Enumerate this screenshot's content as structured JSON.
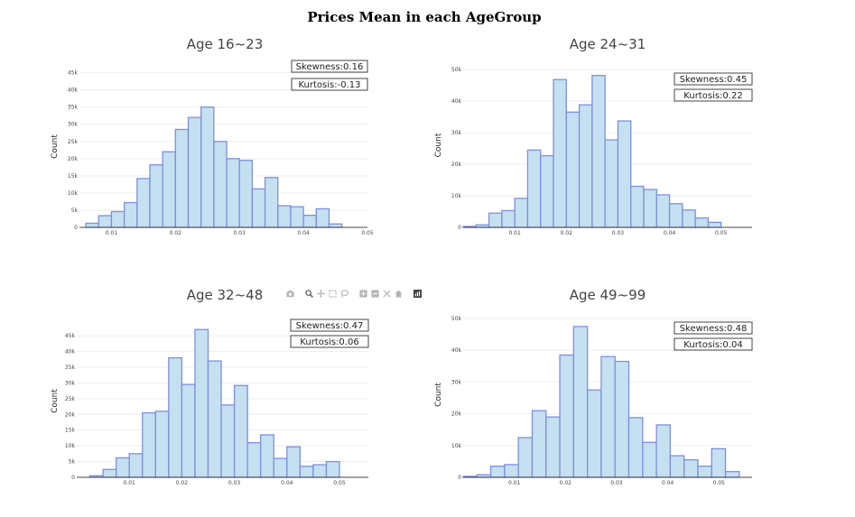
{
  "title": "Prices Mean in each AgeGroup",
  "colors": {
    "bar_fill": "#c5e0f0",
    "bar_stroke": "#7e8fe0",
    "modebar": "#b4b4b4",
    "plotly_logo": "#444444"
  },
  "modebar_icons": [
    "camera-icon",
    "zoom-icon",
    "pan-icon",
    "box-select-icon",
    "lasso-select-icon",
    "zoom-in-icon",
    "zoom-out-icon",
    "autoscale-icon",
    "reset-axes-icon",
    "plotly-logo-icon"
  ],
  "chart_data": [
    {
      "type": "bar",
      "title": "Age 16~23",
      "xlabel": "",
      "ylabel": "Count",
      "xlim": [
        0.005,
        0.05
      ],
      "ylim": [
        0,
        47000
      ],
      "xticks": [
        "0.01",
        "0.02",
        "0.03",
        "0.04",
        "0.05"
      ],
      "yticks": [
        "0",
        "5k",
        "10k",
        "15k",
        "20k",
        "25k",
        "30k",
        "35k",
        "40k",
        "45k"
      ],
      "bin_width": 0.002,
      "bins_start": [
        0.006,
        0.008,
        0.01,
        0.012,
        0.014,
        0.016,
        0.018,
        0.02,
        0.022,
        0.024,
        0.026,
        0.028,
        0.03,
        0.032,
        0.034,
        0.036,
        0.038,
        0.04,
        0.042,
        0.044
      ],
      "values": [
        1200,
        3400,
        4600,
        7200,
        14200,
        18200,
        22000,
        28500,
        32000,
        35000,
        25000,
        20000,
        19500,
        11200,
        14500,
        6300,
        6000,
        3500,
        5400,
        1000
      ],
      "skewness_label": "Skewness:0.16",
      "kurtosis_label": "Kurtosis:-0.13"
    },
    {
      "type": "bar",
      "title": "Age 24~31",
      "xlabel": "",
      "ylabel": "Count",
      "xlim": [
        0,
        0.056
      ],
      "ylim": [
        0,
        52000
      ],
      "xticks": [
        "0.01",
        "0.02",
        "0.03",
        "0.04",
        "0.05"
      ],
      "yticks": [
        "0",
        "10k",
        "20k",
        "30k",
        "40k",
        "50k"
      ],
      "bin_width": 0.0025,
      "bins_start": [
        0.0,
        0.0025,
        0.005,
        0.0075,
        0.01,
        0.0125,
        0.015,
        0.0175,
        0.02,
        0.0225,
        0.025,
        0.0275,
        0.03,
        0.0325,
        0.035,
        0.0375,
        0.04,
        0.0425,
        0.045,
        0.0475
      ],
      "values": [
        300,
        800,
        4500,
        5300,
        9200,
        24500,
        22700,
        46800,
        36500,
        38800,
        48100,
        27700,
        33700,
        13000,
        12000,
        10300,
        7500,
        5500,
        3000,
        1600
      ],
      "skewness_label": "Skewness:0.45",
      "kurtosis_label": "Kurtosis:0.22"
    },
    {
      "type": "bar",
      "title": "Age 32~48",
      "xlabel": "",
      "ylabel": "Count",
      "xlim": [
        0,
        0.0555
      ],
      "ylim": [
        0,
        48500
      ],
      "xticks": [
        "0.01",
        "0.02",
        "0.03",
        "0.04",
        "0.05"
      ],
      "yticks": [
        "0",
        "5k",
        "10k",
        "15k",
        "20k",
        "25k",
        "30k",
        "35k",
        "40k",
        "45k"
      ],
      "bin_width": 0.0025,
      "bins_start": [
        0.0025,
        0.005,
        0.0075,
        0.01,
        0.0125,
        0.015,
        0.0175,
        0.02,
        0.0225,
        0.025,
        0.0275,
        0.03,
        0.0325,
        0.035,
        0.0375,
        0.04,
        0.0425,
        0.045,
        0.0475,
        0.05
      ],
      "values": [
        500,
        2500,
        6200,
        7500,
        20500,
        21000,
        38000,
        29500,
        47000,
        37000,
        23000,
        29200,
        11000,
        13500,
        6000,
        9700,
        3500,
        4000,
        5000,
        0
      ],
      "skewness_label": "Skewness:0.47",
      "kurtosis_label": "Kurtosis:0.06"
    },
    {
      "type": "bar",
      "title": "Age 49~99",
      "xlabel": "",
      "ylabel": "Count",
      "xlim": [
        0,
        0.0565
      ],
      "ylim": [
        0,
        52000
      ],
      "xticks": [
        "0.01",
        "0.02",
        "0.03",
        "0.04",
        "0.05"
      ],
      "yticks": [
        "0",
        "10k",
        "20k",
        "30k",
        "40k",
        "50k"
      ],
      "bin_width": 0.0027,
      "bins_start": [
        0.0,
        0.0027,
        0.0054,
        0.0081,
        0.0108,
        0.0135,
        0.0162,
        0.0189,
        0.0216,
        0.0243,
        0.027,
        0.0297,
        0.0324,
        0.0351,
        0.0378,
        0.0405,
        0.0432,
        0.0459,
        0.0486,
        0.0513
      ],
      "values": [
        300,
        800,
        3500,
        4000,
        12500,
        21000,
        19000,
        38500,
        47500,
        27500,
        38000,
        36500,
        18800,
        11000,
        16500,
        6800,
        5500,
        3500,
        9000,
        1800
      ],
      "skewness_label": "Skewness:0.48",
      "kurtosis_label": "Kurtosis:0.04"
    }
  ]
}
